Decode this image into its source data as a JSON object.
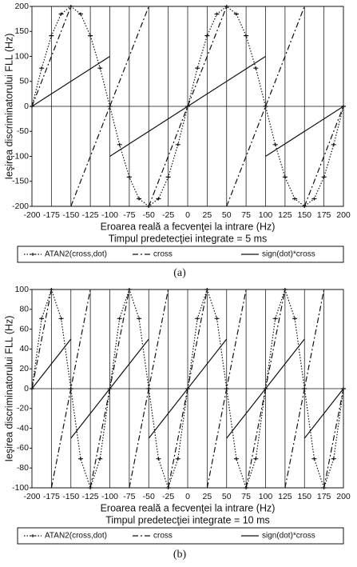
{
  "chart_data": [
    {
      "type": "line",
      "ylabel": "Ieşirea discriminatorului FLL (Hz)",
      "xlabel": "Eroarea reală a fecvenţei la intrare (Hz)",
      "subtitle": "Timpul predetecţiei integrate = 5 ms",
      "caption": "(a)",
      "xlim": [
        -200,
        200
      ],
      "xticks": [
        -200,
        -175,
        -150,
        -125,
        -100,
        -75,
        -50,
        -25,
        0,
        25,
        50,
        75,
        100,
        125,
        150,
        175,
        200
      ],
      "ylim": [
        -200,
        200
      ],
      "yticks": [
        -200,
        -150,
        -100,
        -50,
        0,
        50,
        100,
        150,
        200
      ],
      "grid": true,
      "series": [
        {
          "name": "ATAN2(cross,dot)",
          "color": "#111111",
          "line_style": "dotted",
          "markers": true,
          "x": [
            -200,
            -187.5,
            -175,
            -162.5,
            -150,
            -137.5,
            -125,
            -112.5,
            -100,
            -87.5,
            -75,
            -62.5,
            -50,
            -37.5,
            -25,
            -12.5,
            0,
            12.5,
            25,
            37.5,
            50,
            62.5,
            75,
            87.5,
            100,
            112.5,
            125,
            137.5,
            150,
            162.5,
            175,
            187.5,
            200
          ],
          "values": [
            0,
            76.5,
            141.4,
            184.8,
            200,
            184.8,
            141.4,
            76.5,
            0,
            -76.5,
            -141.4,
            -184.8,
            -200,
            -184.8,
            -141.4,
            -76.5,
            0,
            76.5,
            141.4,
            184.8,
            200,
            184.8,
            141.4,
            76.5,
            0,
            -76.5,
            -141.4,
            -184.8,
            -200,
            -184.8,
            -141.4,
            -76.5,
            0
          ]
        },
        {
          "name": "cross",
          "color": "#111111",
          "line_style": "dashdot",
          "markers": false,
          "x": [
            -200,
            -150,
            null,
            -150,
            -50,
            null,
            -50,
            50,
            null,
            50,
            150,
            null,
            150,
            200
          ],
          "values": [
            0,
            200,
            null,
            -200,
            200,
            null,
            -200,
            200,
            null,
            -200,
            200,
            null,
            -200,
            0
          ]
        },
        {
          "name": "sign(dot)*cross",
          "color": "#111111",
          "line_style": "solid",
          "markers": false,
          "x": [
            -200,
            -100,
            null,
            -100,
            100,
            null,
            100,
            200
          ],
          "values": [
            0,
            100,
            null,
            -100,
            100,
            null,
            -100,
            0
          ]
        }
      ]
    },
    {
      "type": "line",
      "ylabel": "Ieşirea discriminatorului FLL (Hz)",
      "xlabel": "Eroarea reală a fecvenţei la intrare (Hz)",
      "subtitle": "Timpul predetecţiei integrate = 10 ms",
      "caption": "(b)",
      "xlim": [
        -200,
        200
      ],
      "xticks": [
        -200,
        -175,
        -150,
        -125,
        -100,
        -75,
        -50,
        -25,
        0,
        25,
        50,
        75,
        100,
        125,
        150,
        175,
        200
      ],
      "ylim": [
        -100,
        100
      ],
      "yticks": [
        -100,
        -80,
        -60,
        -40,
        -20,
        0,
        20,
        40,
        60,
        80,
        100
      ],
      "grid": true,
      "series": [
        {
          "name": "ATAN2(cross,dot)",
          "color": "#111111",
          "line_style": "dotted",
          "markers": true,
          "x": [
            -200,
            -187.5,
            -175,
            -162.5,
            -150,
            -137.5,
            -125,
            -112.5,
            -100,
            -87.5,
            -75,
            -62.5,
            -50,
            -37.5,
            -25,
            -12.5,
            0,
            12.5,
            25,
            37.5,
            50,
            62.5,
            75,
            87.5,
            100,
            112.5,
            125,
            137.5,
            150,
            162.5,
            175,
            187.5,
            200
          ],
          "values": [
            0,
            70.7,
            100,
            70.7,
            0,
            -70.7,
            -100,
            -70.7,
            0,
            70.7,
            100,
            70.7,
            0,
            -70.7,
            -100,
            -70.7,
            0,
            70.7,
            100,
            70.7,
            0,
            -70.7,
            -100,
            -70.7,
            0,
            70.7,
            100,
            70.7,
            0,
            -70.7,
            -100,
            -70.7,
            0
          ]
        },
        {
          "name": "cross",
          "color": "#111111",
          "line_style": "dashdot",
          "markers": false,
          "x": [
            -200,
            -175,
            null,
            -175,
            -125,
            null,
            -125,
            -75,
            null,
            -75,
            -25,
            null,
            -25,
            25,
            null,
            25,
            75,
            null,
            75,
            125,
            null,
            125,
            175,
            null,
            175,
            200
          ],
          "values": [
            0,
            100,
            null,
            -100,
            100,
            null,
            -100,
            100,
            null,
            -100,
            100,
            null,
            -100,
            100,
            null,
            -100,
            100,
            null,
            -100,
            100,
            null,
            -100,
            100,
            null,
            -100,
            0
          ]
        },
        {
          "name": "sign(dot)*cross",
          "color": "#111111",
          "line_style": "solid",
          "markers": false,
          "x": [
            -200,
            -150,
            null,
            -150,
            -50,
            null,
            -50,
            50,
            null,
            50,
            150,
            null,
            150,
            200
          ],
          "values": [
            0,
            50,
            null,
            -50,
            50,
            null,
            -50,
            50,
            null,
            -50,
            50,
            null,
            -50,
            0
          ]
        }
      ]
    }
  ]
}
